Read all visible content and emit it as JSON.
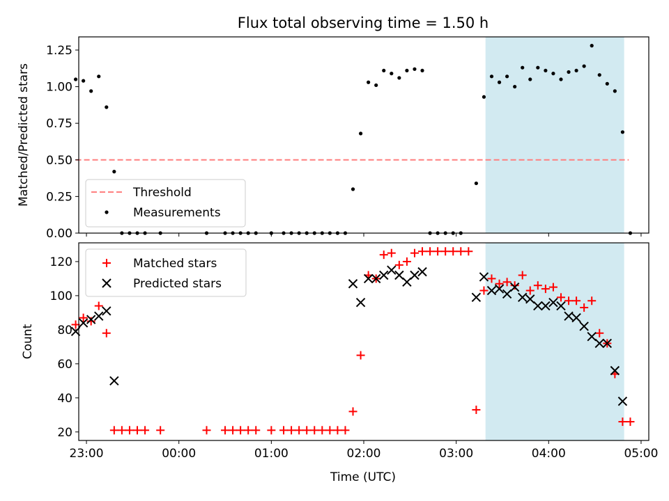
{
  "figure": {
    "title": "Flux total observing time = 1.50 h",
    "x_label": "Time (UTC)",
    "shade_color": "#add8e6"
  },
  "chart_data": [
    {
      "type": "scatter",
      "panel": "top",
      "ylabel": "Matched/Predicted stars",
      "xlim": [
        "22:55",
        "05:05"
      ],
      "ylim": [
        0,
        1.34
      ],
      "yticks": [
        0.0,
        0.25,
        0.5,
        0.75,
        1.0,
        1.25
      ],
      "xticks": [
        "23:00",
        "00:00",
        "01:00",
        "02:00",
        "03:00",
        "04:00",
        "05:00"
      ],
      "shaded_span": [
        "03:19",
        "04:49"
      ],
      "legend": {
        "placement": "lower-left",
        "entries": [
          "Threshold",
          "Measurements"
        ]
      },
      "threshold": {
        "name": "Threshold",
        "value": 0.5,
        "x_range": [
          "22:53",
          "04:52"
        ],
        "color": "#ff7f7f",
        "style": "dashed"
      },
      "series": [
        {
          "name": "Measurements",
          "color": "#000000",
          "marker": "dot",
          "points": [
            [
              "22:53",
              1.05
            ],
            [
              "22:58",
              1.04
            ],
            [
              "23:03",
              0.97
            ],
            [
              "23:08",
              1.07
            ],
            [
              "23:13",
              0.86
            ],
            [
              "23:18",
              0.42
            ],
            [
              "23:23",
              0.0
            ],
            [
              "23:28",
              0.0
            ],
            [
              "23:33",
              0.0
            ],
            [
              "23:38",
              0.0
            ],
            [
              "23:48",
              0.0
            ],
            [
              "00:18",
              0.0
            ],
            [
              "00:30",
              0.0
            ],
            [
              "00:35",
              0.0
            ],
            [
              "00:40",
              0.0
            ],
            [
              "00:45",
              0.0
            ],
            [
              "00:50",
              0.0
            ],
            [
              "01:00",
              0.0
            ],
            [
              "01:08",
              0.0
            ],
            [
              "01:13",
              0.0
            ],
            [
              "01:18",
              0.0
            ],
            [
              "01:23",
              0.0
            ],
            [
              "01:28",
              0.0
            ],
            [
              "01:33",
              0.0
            ],
            [
              "01:38",
              0.0
            ],
            [
              "01:43",
              0.0
            ],
            [
              "01:48",
              0.0
            ],
            [
              "01:53",
              0.3
            ],
            [
              "01:58",
              0.68
            ],
            [
              "02:03",
              1.03
            ],
            [
              "02:08",
              1.01
            ],
            [
              "02:13",
              1.11
            ],
            [
              "02:18",
              1.09
            ],
            [
              "02:23",
              1.06
            ],
            [
              "02:28",
              1.11
            ],
            [
              "02:33",
              1.12
            ],
            [
              "02:38",
              1.11
            ],
            [
              "02:43",
              0.0
            ],
            [
              "02:48",
              0.0
            ],
            [
              "02:53",
              0.0
            ],
            [
              "02:58",
              0.0
            ],
            [
              "03:03",
              0.0
            ],
            [
              "03:13",
              0.34
            ],
            [
              "03:18",
              0.93
            ],
            [
              "03:23",
              1.07
            ],
            [
              "03:28",
              1.03
            ],
            [
              "03:33",
              1.07
            ],
            [
              "03:38",
              1.0
            ],
            [
              "03:43",
              1.13
            ],
            [
              "03:48",
              1.05
            ],
            [
              "03:53",
              1.13
            ],
            [
              "03:58",
              1.11
            ],
            [
              "04:03",
              1.09
            ],
            [
              "04:08",
              1.05
            ],
            [
              "04:13",
              1.1
            ],
            [
              "04:18",
              1.11
            ],
            [
              "04:23",
              1.14
            ],
            [
              "04:28",
              1.28
            ],
            [
              "04:33",
              1.08
            ],
            [
              "04:38",
              1.02
            ],
            [
              "04:43",
              0.97
            ],
            [
              "04:48",
              0.69
            ],
            [
              "04:53",
              0.0
            ]
          ]
        }
      ]
    },
    {
      "type": "scatter",
      "panel": "bottom",
      "ylabel": "Count",
      "xlabel": "Time (UTC)",
      "xlim": [
        "22:55",
        "05:05"
      ],
      "ylim": [
        15,
        131
      ],
      "yticks": [
        20,
        40,
        60,
        80,
        100,
        120
      ],
      "xticks": [
        "23:00",
        "00:00",
        "01:00",
        "02:00",
        "03:00",
        "04:00",
        "05:00"
      ],
      "shaded_span": [
        "03:19",
        "04:49"
      ],
      "legend": {
        "placement": "upper-left",
        "entries": [
          "Matched stars",
          "Predicted stars"
        ]
      },
      "series": [
        {
          "name": "Matched stars",
          "color": "#ff0000",
          "marker": "plus",
          "points": [
            [
              "22:53",
              83
            ],
            [
              "22:58",
              87
            ],
            [
              "23:03",
              85
            ],
            [
              "23:08",
              94
            ],
            [
              "23:13",
              78
            ],
            [
              "23:18",
              21
            ],
            [
              "23:23",
              21
            ],
            [
              "23:28",
              21
            ],
            [
              "23:33",
              21
            ],
            [
              "23:38",
              21
            ],
            [
              "23:48",
              21
            ],
            [
              "00:18",
              21
            ],
            [
              "00:30",
              21
            ],
            [
              "00:35",
              21
            ],
            [
              "00:40",
              21
            ],
            [
              "00:45",
              21
            ],
            [
              "00:50",
              21
            ],
            [
              "01:00",
              21
            ],
            [
              "01:08",
              21
            ],
            [
              "01:13",
              21
            ],
            [
              "01:18",
              21
            ],
            [
              "01:23",
              21
            ],
            [
              "01:28",
              21
            ],
            [
              "01:33",
              21
            ],
            [
              "01:38",
              21
            ],
            [
              "01:43",
              21
            ],
            [
              "01:48",
              21
            ],
            [
              "01:53",
              32
            ],
            [
              "01:58",
              65
            ],
            [
              "02:03",
              112
            ],
            [
              "02:08",
              110
            ],
            [
              "02:13",
              124
            ],
            [
              "02:18",
              125
            ],
            [
              "02:23",
              118
            ],
            [
              "02:28",
              120
            ],
            [
              "02:33",
              125
            ],
            [
              "02:38",
              126
            ],
            [
              "02:43",
              126
            ],
            [
              "02:48",
              126
            ],
            [
              "02:53",
              126
            ],
            [
              "02:58",
              126
            ],
            [
              "03:03",
              126
            ],
            [
              "03:08",
              126
            ],
            [
              "03:13",
              33
            ],
            [
              "03:18",
              103
            ],
            [
              "03:23",
              110
            ],
            [
              "03:28",
              107
            ],
            [
              "03:33",
              108
            ],
            [
              "03:38",
              106
            ],
            [
              "03:43",
              112
            ],
            [
              "03:48",
              103
            ],
            [
              "03:53",
              106
            ],
            [
              "03:58",
              104
            ],
            [
              "04:03",
              105
            ],
            [
              "04:08",
              99
            ],
            [
              "04:13",
              97
            ],
            [
              "04:18",
              97
            ],
            [
              "04:23",
              93
            ],
            [
              "04:28",
              97
            ],
            [
              "04:33",
              78
            ],
            [
              "04:38",
              72
            ],
            [
              "04:43",
              54
            ],
            [
              "04:48",
              26
            ],
            [
              "04:53",
              26
            ]
          ]
        },
        {
          "name": "Predicted stars",
          "color": "#000000",
          "marker": "x",
          "points": [
            [
              "22:53",
              79
            ],
            [
              "22:58",
              84
            ],
            [
              "23:03",
              86
            ],
            [
              "23:08",
              88
            ],
            [
              "23:13",
              91
            ],
            [
              "23:18",
              50
            ],
            [
              "01:53",
              107
            ],
            [
              "01:58",
              96
            ],
            [
              "02:03",
              110
            ],
            [
              "02:08",
              110
            ],
            [
              "02:13",
              112
            ],
            [
              "02:18",
              115
            ],
            [
              "02:23",
              112
            ],
            [
              "02:28",
              108
            ],
            [
              "02:33",
              112
            ],
            [
              "02:38",
              114
            ],
            [
              "03:13",
              99
            ],
            [
              "03:18",
              111
            ],
            [
              "03:23",
              103
            ],
            [
              "03:28",
              104
            ],
            [
              "03:33",
              101
            ],
            [
              "03:38",
              105
            ],
            [
              "03:43",
              99
            ],
            [
              "03:48",
              98
            ],
            [
              "03:53",
              94
            ],
            [
              "03:58",
              94
            ],
            [
              "04:03",
              96
            ],
            [
              "04:08",
              94
            ],
            [
              "04:13",
              88
            ],
            [
              "04:18",
              87
            ],
            [
              "04:23",
              82
            ],
            [
              "04:28",
              76
            ],
            [
              "04:33",
              72
            ],
            [
              "04:38",
              72
            ],
            [
              "04:43",
              56
            ],
            [
              "04:48",
              38
            ]
          ]
        }
      ]
    }
  ]
}
